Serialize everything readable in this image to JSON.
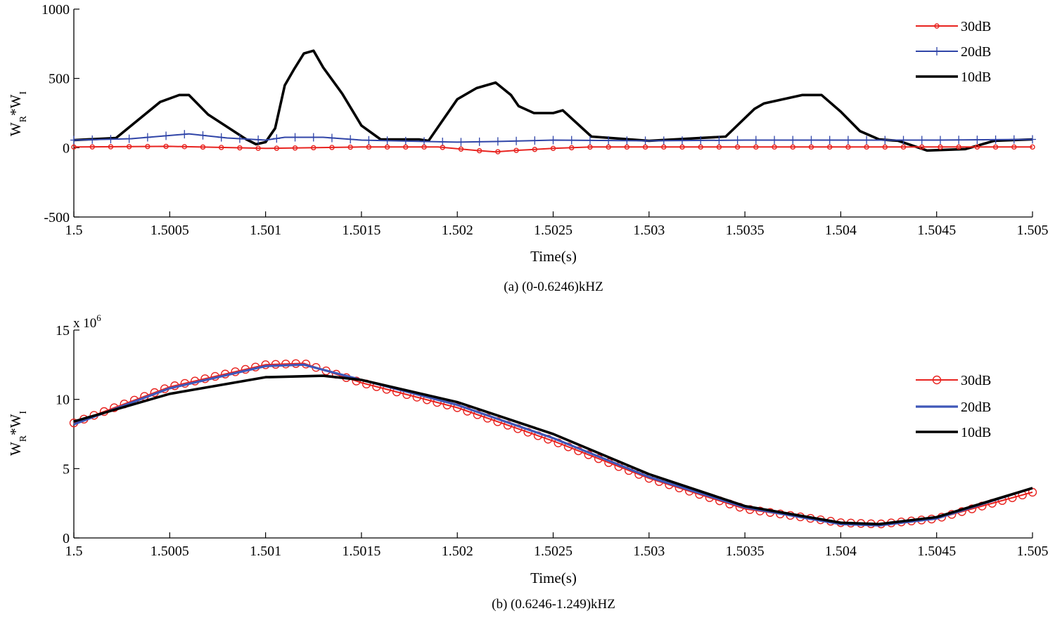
{
  "chart_data": [
    {
      "type": "line",
      "caption": "(a) (0-0.6246)kHZ",
      "xlabel": "Time(s)",
      "ylabel": {
        "base1": "W",
        "sub1": "R",
        "mid": "*W",
        "sub2": "I"
      },
      "xlim": [
        1.5,
        1.505
      ],
      "ylim": [
        -500,
        1000
      ],
      "xticks": [
        1.5,
        1.5005,
        1.501,
        1.5015,
        1.502,
        1.5025,
        1.503,
        1.5035,
        1.504,
        1.5045,
        1.505
      ],
      "xtick_labels": [
        "1.5",
        "1.5005",
        "1.501",
        "1.5015",
        "1.502",
        "1.5025",
        "1.503",
        "1.5035",
        "1.504",
        "1.5045",
        "1.505"
      ],
      "yticks": [
        -500,
        0,
        500,
        1000
      ],
      "ytick_labels": [
        "-500",
        "0",
        "500",
        "1000"
      ],
      "legend_position": "top-right",
      "series": [
        {
          "name": "30dB",
          "color": "#e8231f",
          "marker": "circle",
          "x": [
            1.5,
            1.5005,
            1.501,
            1.5015,
            1.5019,
            1.5021,
            1.5022,
            1.5023,
            1.5025,
            1.5027,
            1.503,
            1.5035,
            1.504,
            1.5045,
            1.505
          ],
          "y": [
            5,
            10,
            -5,
            5,
            5,
            -20,
            -30,
            -20,
            -5,
            5,
            5,
            5,
            5,
            5,
            5
          ]
        },
        {
          "name": "20dB",
          "color": "#3045a8",
          "marker": "plus",
          "x": [
            1.5,
            1.5003,
            1.5006,
            1.5008,
            1.501,
            1.5011,
            1.5013,
            1.5015,
            1.502,
            1.5022,
            1.5025,
            1.503,
            1.5035,
            1.504,
            1.5045,
            1.505
          ],
          "y": [
            55,
            65,
            100,
            70,
            55,
            75,
            75,
            55,
            40,
            45,
            55,
            50,
            55,
            55,
            55,
            60
          ]
        },
        {
          "name": "10dB",
          "color": "#000000",
          "marker": "none",
          "x": [
            1.5,
            1.50022,
            1.50045,
            1.50055,
            1.5006,
            1.5007,
            1.5009,
            1.50095,
            1.501,
            1.50105,
            1.5011,
            1.50115,
            1.5012,
            1.50125,
            1.5013,
            1.5014,
            1.5015,
            1.5016,
            1.5017,
            1.5018,
            1.50185,
            1.502,
            1.5021,
            1.5022,
            1.50228,
            1.50232,
            1.5024,
            1.5025,
            1.50255,
            1.5027,
            1.503,
            1.5034,
            1.50355,
            1.5036,
            1.5038,
            1.5039,
            1.504,
            1.5041,
            1.5042,
            1.5043,
            1.50445,
            1.50465,
            1.5048,
            1.505
          ],
          "y": [
            55,
            70,
            330,
            380,
            380,
            240,
            60,
            25,
            40,
            140,
            450,
            570,
            680,
            700,
            580,
            390,
            160,
            60,
            60,
            60,
            50,
            350,
            430,
            470,
            380,
            300,
            250,
            250,
            270,
            80,
            50,
            80,
            280,
            320,
            380,
            380,
            260,
            120,
            60,
            50,
            -20,
            -10,
            50,
            60
          ]
        }
      ]
    },
    {
      "type": "line",
      "caption": "(b) (0.6246-1.249)kHZ",
      "xlabel": "Time(s)",
      "ylabel": {
        "base1": "W",
        "sub1": "R",
        "mid": "*W",
        "sub2": "I"
      },
      "scale_label": {
        "base": "x 10",
        "exp": "6"
      },
      "xlim": [
        1.5,
        1.505
      ],
      "ylim": [
        0,
        15
      ],
      "xticks": [
        1.5,
        1.5005,
        1.501,
        1.5015,
        1.502,
        1.5025,
        1.503,
        1.5035,
        1.504,
        1.5045,
        1.505
      ],
      "xtick_labels": [
        "1.5",
        "1.5005",
        "1.501",
        "1.5015",
        "1.502",
        "1.5025",
        "1.503",
        "1.5035",
        "1.504",
        "1.5045",
        "1.505"
      ],
      "yticks": [
        0,
        5,
        10,
        15
      ],
      "ytick_labels": [
        "0",
        "5",
        "10",
        "15"
      ],
      "legend_position": "right",
      "series": [
        {
          "name": "30dB",
          "color": "#e8231f",
          "marker": "circle",
          "x": [
            1.5,
            1.5005,
            1.501,
            1.5012,
            1.5015,
            1.502,
            1.5025,
            1.503,
            1.5035,
            1.504,
            1.5042,
            1.5045,
            1.505
          ],
          "y": [
            8.3,
            10.9,
            12.5,
            12.6,
            11.2,
            9.4,
            7.0,
            4.3,
            2.1,
            1.1,
            1.0,
            1.4,
            3.3
          ]
        },
        {
          "name": "20dB",
          "color": "#3f57b8",
          "marker": "none",
          "x": [
            1.5,
            1.5005,
            1.501,
            1.5012,
            1.5015,
            1.502,
            1.5025,
            1.503,
            1.5035,
            1.504,
            1.5042,
            1.5045,
            1.505
          ],
          "y": [
            8.2,
            10.8,
            12.4,
            12.5,
            11.4,
            9.6,
            7.2,
            4.4,
            2.2,
            1.0,
            0.9,
            1.4,
            3.6
          ]
        },
        {
          "name": "10dB",
          "color": "#000000",
          "marker": "none",
          "x": [
            1.5,
            1.5005,
            1.501,
            1.5013,
            1.5015,
            1.502,
            1.5025,
            1.503,
            1.5035,
            1.504,
            1.5042,
            1.5045,
            1.505
          ],
          "y": [
            8.4,
            10.4,
            11.6,
            11.7,
            11.4,
            9.8,
            7.5,
            4.6,
            2.3,
            1.1,
            1.0,
            1.5,
            3.6
          ]
        }
      ]
    }
  ]
}
